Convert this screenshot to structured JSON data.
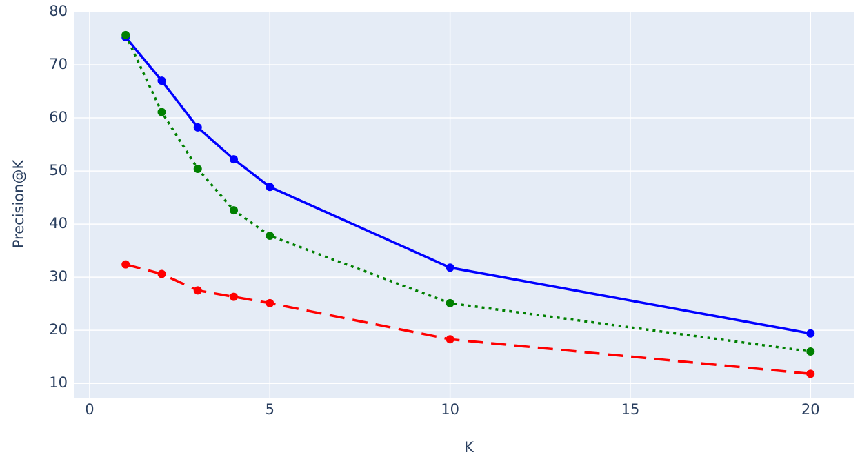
{
  "chart_data": {
    "type": "line",
    "x_label": "K",
    "y_label": "Precision@K",
    "x": [
      1,
      2,
      3,
      4,
      5,
      10,
      20
    ],
    "series": [
      {
        "color": "#0000ff",
        "dash": "solid",
        "values": [
          75.2,
          67.0,
          58.2,
          52.2,
          47.0,
          31.8,
          19.4
        ]
      },
      {
        "color": "#008000",
        "dash": "dot",
        "values": [
          75.6,
          61.1,
          50.4,
          42.6,
          37.8,
          25.1,
          16.0
        ]
      },
      {
        "color": "#ff0000",
        "dash": "dash",
        "values": [
          32.4,
          30.6,
          27.5,
          26.3,
          25.1,
          18.3,
          11.8
        ]
      }
    ],
    "xlim": [
      -0.42,
      21.2
    ],
    "xticks": [
      0,
      5,
      10,
      15,
      20
    ],
    "ylim": [
      7.3,
      80
    ],
    "yticks": [
      10,
      20,
      30,
      40,
      50,
      60,
      70,
      80
    ],
    "grid": true
  }
}
